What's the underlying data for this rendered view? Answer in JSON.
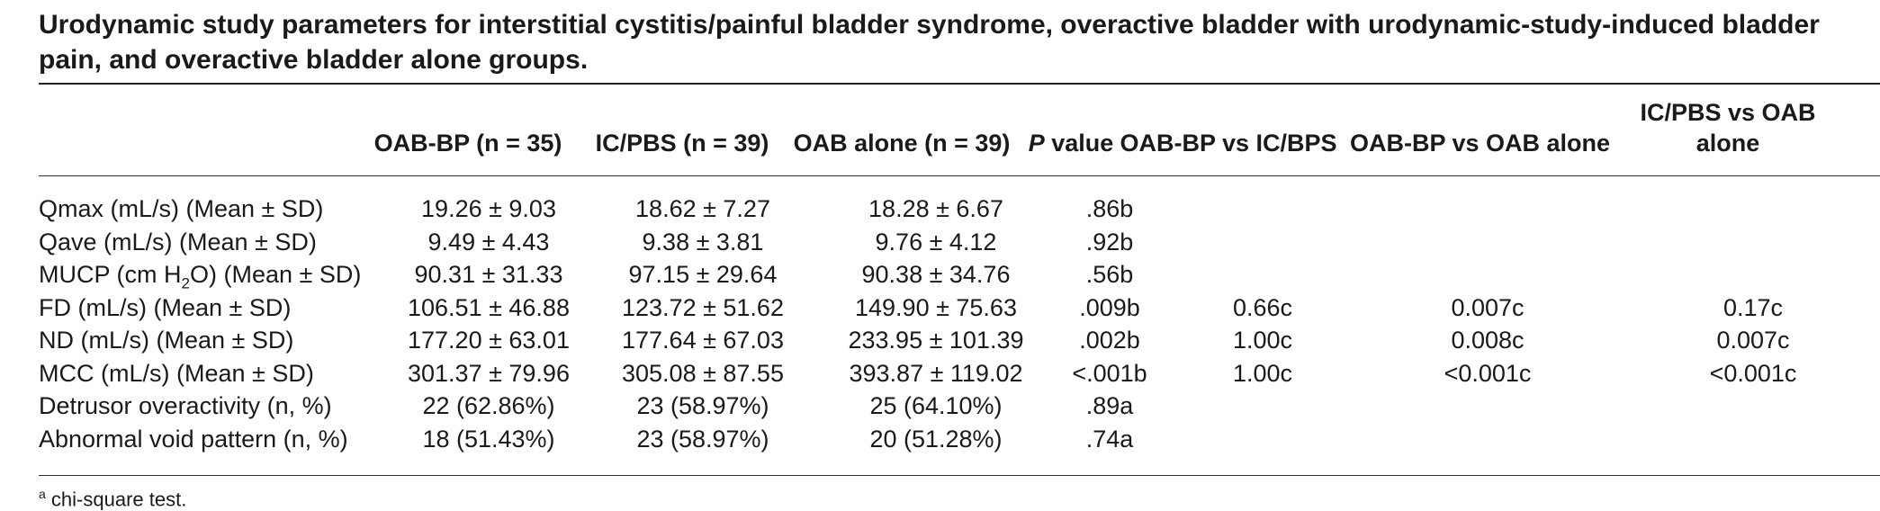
{
  "caption": "Urodynamic study parameters for interstitial cystitis/painful bladder syndrome, overactive bladder with urodynamic-study-induced bladder pain, and overactive bladder alone groups.",
  "headers": {
    "oab_bp": "OAB-BP (n = 35)",
    "ic_pbs": "IC/PBS (n = 39)",
    "oab_alone": "OAB alone (n = 39)",
    "p_value_p": "P",
    "p_value_rest": " value",
    "oab_bp_vs_ic": "OAB-BP vs IC/BPS",
    "oab_bp_vs_oab": "OAB-BP vs OAB alone",
    "ic_vs_oab_line1": "IC/PBS vs OAB",
    "ic_vs_oab_line2": "alone"
  },
  "rows": [
    {
      "label": "Qmax (mL/s) (Mean ± SD)",
      "oab_bp": "19.26 ± 9.03",
      "ic_pbs": "18.62 ± 7.27",
      "oab_alone": "18.28 ± 6.67",
      "p": ".86b",
      "v1": "",
      "v2": "",
      "v3": ""
    },
    {
      "label": "Qave (mL/s) (Mean ± SD)",
      "oab_bp": "9.49 ± 4.43",
      "ic_pbs": "9.38 ± 3.81",
      "oab_alone": "9.76 ± 4.12",
      "p": ".92b",
      "v1": "",
      "v2": "",
      "v3": ""
    },
    {
      "label_pre": "MUCP (cm H",
      "label_sub": "2",
      "label_post": "O) (Mean ± SD)",
      "oab_bp": "90.31 ± 31.33",
      "ic_pbs": "97.15 ± 29.64",
      "oab_alone": "90.38 ± 34.76",
      "p": ".56b",
      "v1": "",
      "v2": "",
      "v3": ""
    },
    {
      "label": "FD (mL/s) (Mean ± SD)",
      "oab_bp": "106.51 ± 46.88",
      "ic_pbs": "123.72 ± 51.62",
      "oab_alone": "149.90 ± 75.63",
      "p": ".009b",
      "v1": "0.66c",
      "v2": "0.007c",
      "v3": "0.17c"
    },
    {
      "label": "ND (mL/s) (Mean ± SD)",
      "oab_bp": "177.20 ± 63.01",
      "ic_pbs": "177.64 ± 67.03",
      "oab_alone": "233.95 ± 101.39",
      "p": ".002b",
      "v1": "1.00c",
      "v2": "0.008c",
      "v3": "0.007c"
    },
    {
      "label": "MCC (mL/s) (Mean ± SD)",
      "oab_bp": "301.37 ± 79.96",
      "ic_pbs": "305.08 ± 87.55",
      "oab_alone": "393.87 ± 119.02",
      "p": "<.001b",
      "v1": "1.00c",
      "v2": "<0.001c",
      "v3": "<0.001c"
    },
    {
      "label": "Detrusor overactivity (n, %)",
      "oab_bp": "22 (62.86%)",
      "ic_pbs": "23 (58.97%)",
      "oab_alone": "25 (64.10%)",
      "p": ".89a",
      "v1": "",
      "v2": "",
      "v3": ""
    },
    {
      "label": "Abnormal void pattern (n, %)",
      "oab_bp": "18 (51.43%)",
      "ic_pbs": "23 (58.97%)",
      "oab_alone": "20 (51.28%)",
      "p": ".74a",
      "v1": "",
      "v2": "",
      "v3": ""
    }
  ],
  "footnote": {
    "marker": "a",
    "text": " chi-square test."
  }
}
